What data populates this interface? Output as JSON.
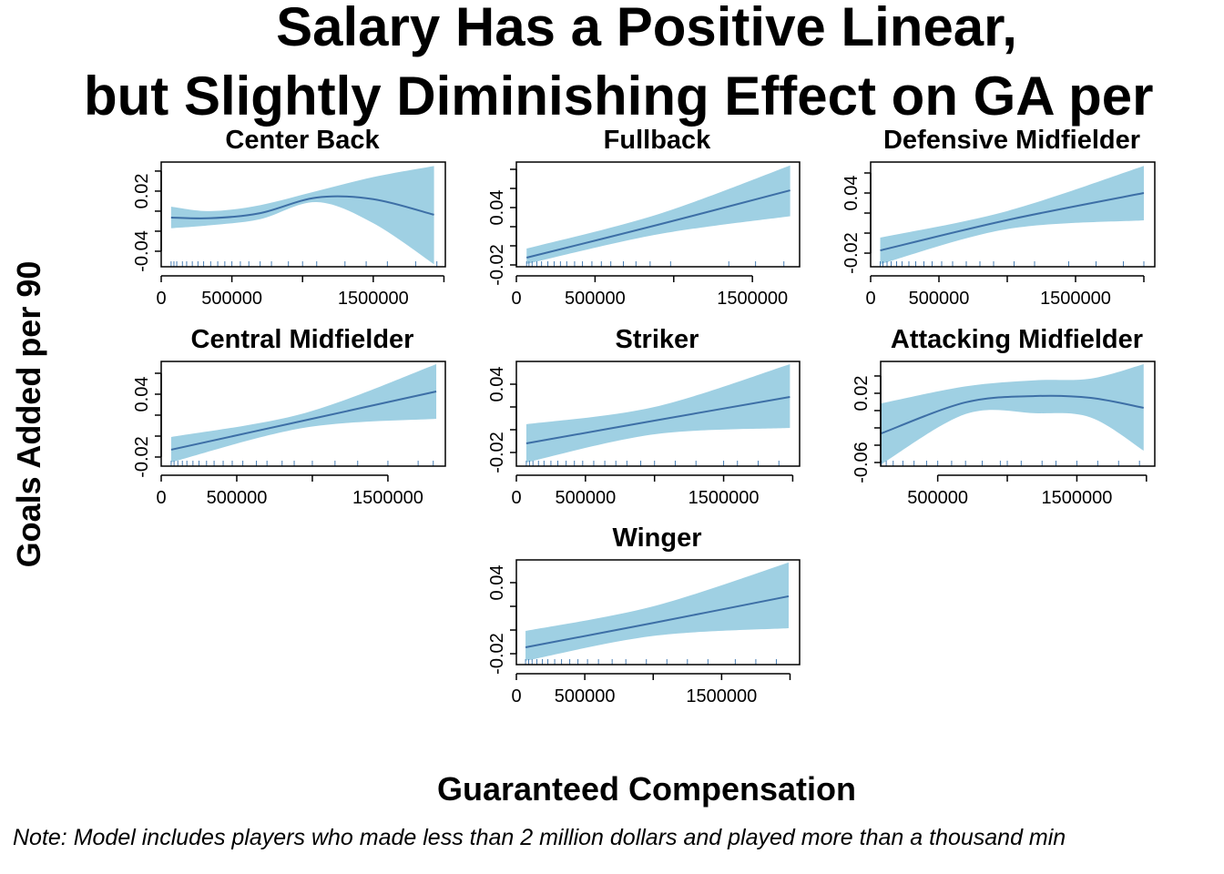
{
  "title": [
    "Salary Has a Positive Linear,",
    "but Slightly Diminishing Effect on GA per"
  ],
  "y_label": "Goals Added per 90",
  "x_label": "Guaranteed Compensation",
  "note": "Note: Model includes players who made less than 2 million dollars and played more than a thousand min",
  "chart_data": [
    {
      "type": "line",
      "title": "Center Back",
      "color": "#3d6fa6",
      "band_color": "#9fd0e3",
      "rug_color": "#4a7fb5",
      "x": [
        70000,
        350000,
        700000,
        1100000,
        1500000,
        1930000
      ],
      "values": [
        -0.0064,
        -0.007,
        -0.002,
        0.0136,
        0.012,
        -0.0036
      ],
      "lower": [
        -0.017,
        -0.014,
        -0.008,
        0.009,
        -0.012,
        -0.053
      ],
      "upper": [
        0.0045,
        0.0,
        0.006,
        0.02,
        0.034,
        0.045
      ],
      "rug": [
        70000,
        90000,
        110000,
        150000,
        180000,
        220000,
        260000,
        300000,
        350000,
        400000,
        450000,
        500000,
        560000,
        620000,
        700000,
        780000,
        900000,
        1000000,
        1100000,
        1300000,
        1450000,
        1600000,
        1800000,
        1950000
      ],
      "xlim": [
        0,
        2010000
      ],
      "ylim": [
        -0.0555,
        0.049
      ],
      "xticks": [
        0,
        500000,
        {
          "value": 1000000,
          "label": null
        },
        1500000,
        {
          "value": 2000000,
          "label": null
        }
      ],
      "yticks": [
        -0.04,
        {
          "value": -0.02,
          "label": null
        },
        {
          "value": 0,
          "label": null
        },
        0.02,
        {
          "value": 0.04,
          "label": null
        }
      ]
    },
    {
      "type": "line",
      "title": "Fullback",
      "color": "#3d6fa6",
      "band_color": "#9fd0e3",
      "rug_color": "#4a7fb5",
      "x": [
        65000,
        900000,
        1740000
      ],
      "values": [
        -0.0124,
        0.022,
        0.058
      ],
      "lower": [
        -0.019,
        0.012,
        0.031
      ],
      "upper": [
        -0.0029,
        0.033,
        0.084
      ],
      "rug": [
        65000,
        80000,
        100000,
        130000,
        160000,
        200000,
        240000,
        280000,
        320000,
        370000,
        420000,
        480000,
        540000,
        600000,
        680000,
        760000,
        850000,
        980000,
        1350000,
        1520000,
        1700000
      ],
      "xlim": [
        0,
        1800000
      ],
      "ylim": [
        -0.0219,
        0.0876
      ],
      "xticks": [
        0,
        500000,
        {
          "value": 1000000,
          "label": null
        },
        1500000
      ],
      "yticks": [
        -0.02,
        {
          "value": 0,
          "label": null
        },
        {
          "value": 0.02,
          "label": null
        },
        0.04,
        {
          "value": 0.06,
          "label": null
        },
        {
          "value": 0.08,
          "label": null
        }
      ]
    },
    {
      "type": "line",
      "title": "Defensive Midfielder",
      "color": "#3d6fa6",
      "band_color": "#9fd0e3",
      "rug_color": "#4a7fb5",
      "x": [
        70000,
        1000000,
        2000000
      ],
      "values": [
        -0.0173,
        0.013,
        0.04
      ],
      "lower": [
        -0.031,
        0.004,
        0.0127
      ],
      "upper": [
        -0.0045,
        0.022,
        0.067
      ],
      "rug": [
        70000,
        90000,
        120000,
        150000,
        190000,
        230000,
        280000,
        330000,
        390000,
        450000,
        520000,
        600000,
        700000,
        800000,
        900000,
        1050000,
        1200000,
        1450000,
        1650000,
        1850000,
        2000000
      ],
      "xlim": [
        0,
        2080000
      ],
      "ylim": [
        -0.0336,
        0.0709
      ],
      "xticks": [
        0,
        500000,
        {
          "value": 1000000,
          "label": null
        },
        1500000,
        {
          "value": 2000000,
          "label": null
        }
      ],
      "yticks": [
        -0.02,
        {
          "value": 0,
          "label": null
        },
        {
          "value": 0.02,
          "label": null
        },
        0.04,
        {
          "value": 0.06,
          "label": null
        }
      ]
    },
    {
      "type": "line",
      "title": "Central Midfielder",
      "color": "#3d6fa6",
      "band_color": "#9fd0e3",
      "rug_color": "#4a7fb5",
      "x": [
        66000,
        950000,
        1820000
      ],
      "values": [
        -0.013,
        0.015,
        0.0426
      ],
      "lower": [
        -0.025,
        0.008,
        0.0165
      ],
      "upper": [
        -0.0009,
        0.022,
        0.0687
      ],
      "rug": [
        66000,
        85000,
        110000,
        140000,
        170000,
        210000,
        250000,
        300000,
        350000,
        410000,
        470000,
        540000,
        630000,
        700000,
        800000,
        880000,
        1000000,
        1150000,
        1300000,
        1500000,
        1700000,
        1800000
      ],
      "xlim": [
        0,
        1880000
      ],
      "ylim": [
        -0.0287,
        0.0713
      ],
      "xticks": [
        0,
        500000,
        {
          "value": 1000000,
          "label": null
        },
        1500000
      ],
      "yticks": [
        -0.02,
        {
          "value": 0,
          "label": null
        },
        {
          "value": 0.02,
          "label": null
        },
        0.04,
        {
          "value": 0.06,
          "label": null
        }
      ]
    },
    {
      "type": "line",
      "title": "Striker",
      "color": "#3d6fa6",
      "band_color": "#9fd0e3",
      "rug_color": "#4a7fb5",
      "x": [
        72000,
        1000000,
        1980000
      ],
      "values": [
        -0.012,
        0.008,
        0.0288
      ],
      "lower": [
        -0.0288,
        -0.004,
        0.0016
      ],
      "upper": [
        0.0048,
        0.02,
        0.0576
      ],
      "rug": [
        72000,
        95000,
        120000,
        160000,
        200000,
        250000,
        300000,
        360000,
        420000,
        480000,
        560000,
        640000,
        720000,
        800000,
        900000,
        1000000,
        1150000,
        1300000,
        1500000,
        1600000,
        1750000,
        1900000
      ],
      "xlim": [
        0,
        2050000
      ],
      "ylim": [
        -0.032,
        0.06
      ],
      "xticks": [
        0,
        500000,
        {
          "value": 1000000,
          "label": null
        },
        1500000,
        {
          "value": 2000000,
          "label": null
        }
      ],
      "yticks": [
        -0.02,
        {
          "value": 0,
          "label": null
        },
        {
          "value": 0.02,
          "label": null
        },
        0.04
      ]
    },
    {
      "type": "line",
      "title": "Attacking Midfielder",
      "color": "#3d6fa6",
      "band_color": "#9fd0e3",
      "rug_color": "#4a7fb5",
      "x": [
        95000,
        700000,
        1200000,
        1600000,
        1980000
      ],
      "values": [
        -0.0263,
        0.0095,
        0.0168,
        0.0147,
        0.0032
      ],
      "lower": [
        -0.062,
        -0.004,
        -0.003,
        -0.008,
        -0.0463
      ],
      "upper": [
        0.0084,
        0.028,
        0.035,
        0.037,
        0.0537
      ],
      "rug": [
        95000,
        130000,
        180000,
        250000,
        330000,
        420000,
        500000,
        600000,
        700000,
        820000,
        950000,
        1000000,
        1100000,
        1250000,
        1350000,
        1500000,
        1650000,
        1800000,
        1950000
      ],
      "xlim": [
        90000,
        2060000
      ],
      "ylim": [
        -0.0642,
        0.0568
      ],
      "xticks": [
        500000,
        {
          "value": 1000000,
          "label": null
        },
        1500000,
        {
          "value": 2000000,
          "label": null
        }
      ],
      "yticks": [
        -0.06,
        {
          "value": -0.04,
          "label": null
        },
        {
          "value": -0.02,
          "label": null
        },
        {
          "value": 0,
          "label": null
        },
        0.02,
        {
          "value": 0.04,
          "label": null
        }
      ]
    },
    {
      "type": "line",
      "title": "Winger",
      "color": "#3d6fa6",
      "band_color": "#9fd0e3",
      "rug_color": "#4a7fb5",
      "x": [
        67000,
        1000000,
        1990000
      ],
      "values": [
        -0.0146,
        0.006,
        0.0285
      ],
      "lower": [
        -0.026,
        -0.005,
        0.0015
      ],
      "upper": [
        -0.0008,
        0.02,
        0.057
      ],
      "rug": [
        67000,
        90000,
        115000,
        150000,
        190000,
        230000,
        280000,
        330000,
        390000,
        450000,
        520000,
        600000,
        700000,
        800000,
        950000,
        1100000,
        1250000,
        1400000,
        1600000,
        1750000,
        1900000
      ],
      "xlim": [
        0,
        2070000
      ],
      "ylim": [
        -0.0292,
        0.0592
      ],
      "xticks": [
        0,
        500000,
        {
          "value": 1000000,
          "label": null
        },
        1500000,
        {
          "value": 2000000,
          "label": null
        }
      ],
      "yticks": [
        -0.02,
        {
          "value": 0,
          "label": null
        },
        {
          "value": 0.02,
          "label": null
        },
        0.04
      ]
    }
  ]
}
